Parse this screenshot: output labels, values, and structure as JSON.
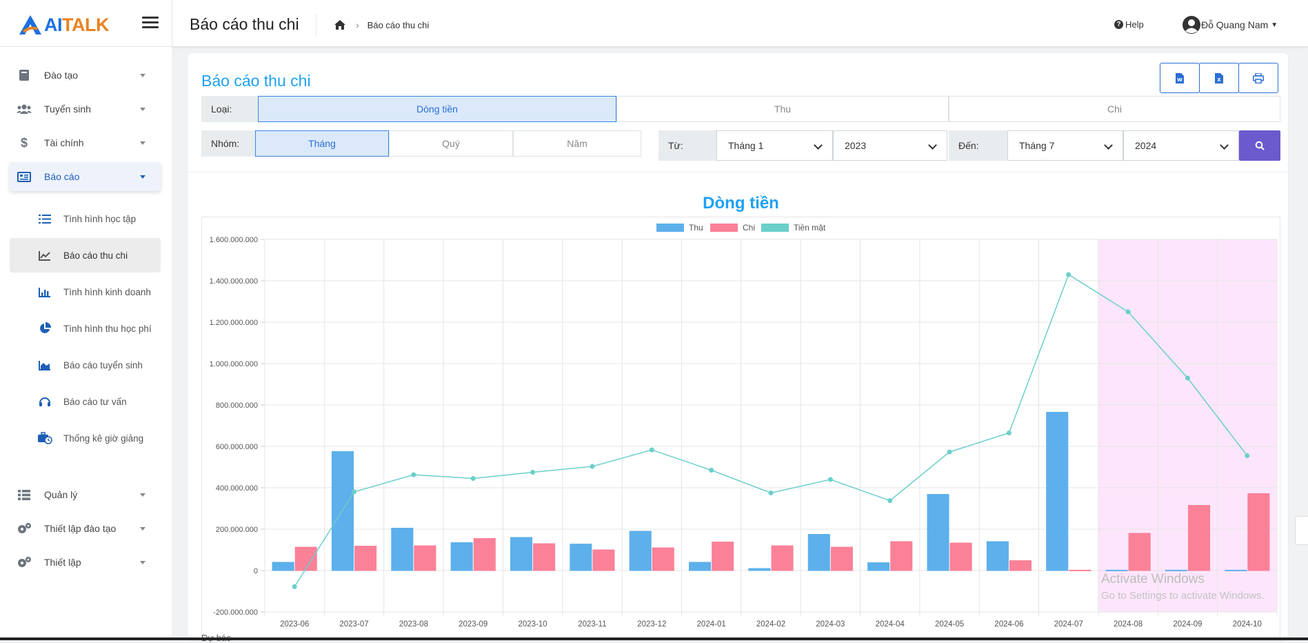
{
  "app": {
    "logo_ai": "AI",
    "logo_talk": "TALK"
  },
  "header": {
    "page_title": "Báo cáo thu chi",
    "breadcrumb_current": "Báo cáo thu chi",
    "help_label": "Help",
    "user_name": "Đỗ Quang Nam"
  },
  "sidebar": {
    "items": [
      {
        "label": "Đào tạo",
        "icon": "book-icon"
      },
      {
        "label": "Tuyển sinh",
        "icon": "users-icon"
      },
      {
        "label": "Tài chính",
        "icon": "dollar-icon"
      },
      {
        "label": "Báo cáo",
        "icon": "report-icon"
      },
      {
        "label": "Quản lý",
        "icon": "list-icon"
      },
      {
        "label": "Thiết lập đào tạo",
        "icon": "gears-icon"
      },
      {
        "label": "Thiết lập",
        "icon": "gears-icon"
      }
    ],
    "sub_items": [
      {
        "label": "Tình hình học tập",
        "icon": "tasks-icon"
      },
      {
        "label": "Báo cáo thu chi",
        "icon": "line-chart-icon"
      },
      {
        "label": "Tình hình kinh doanh",
        "icon": "bar-chart-icon"
      },
      {
        "label": "Tình hình thu học phí",
        "icon": "pie-chart-icon"
      },
      {
        "label": "Báo cáo tuyển sinh",
        "icon": "area-chart-icon"
      },
      {
        "label": "Báo cáo tư vấn",
        "icon": "headset-icon"
      },
      {
        "label": "Thống kê giờ giảng",
        "icon": "briefcase-clock-icon"
      }
    ]
  },
  "report": {
    "title": "Báo cáo thu chi",
    "type_label": "Loại:",
    "type_options": [
      "Dòng tiền",
      "Thu",
      "Chi"
    ],
    "type_selected": "Dòng tiền",
    "group_label": "Nhóm:",
    "group_options": [
      "Tháng",
      "Quý",
      "Năm"
    ],
    "group_selected": "Tháng",
    "from_label": "Từ:",
    "from_month": "Tháng 1",
    "from_year": "2023",
    "to_label": "Đến:",
    "to_month": "Tháng 7",
    "to_year": "2024",
    "footer_fragment": "Dự báo"
  },
  "chart_data": {
    "type": "bar",
    "title": "Dòng tiền",
    "categories": [
      "2023-06",
      "2023-07",
      "2023-08",
      "2023-09",
      "2023-10",
      "2023-11",
      "2023-12",
      "2024-01",
      "2024-02",
      "2024-03",
      "2024-04",
      "2024-05",
      "2024-06",
      "2024-07",
      "2024-08",
      "2024-09",
      "2024-10"
    ],
    "series": [
      {
        "name": "Thu",
        "kind": "bar",
        "color": "#5db0eb",
        "values": [
          40000000,
          575000000,
          205000000,
          135000000,
          160000000,
          128000000,
          190000000,
          40000000,
          10000000,
          175000000,
          38000000,
          368000000,
          140000000,
          765000000,
          2000000,
          2000000,
          2000000
        ]
      },
      {
        "name": "Chi",
        "kind": "bar",
        "color": "#fb8198",
        "values": [
          113000000,
          118000000,
          120000000,
          155000000,
          130000000,
          100000000,
          110000000,
          138000000,
          120000000,
          113000000,
          140000000,
          133000000,
          48000000,
          2000000,
          180000000,
          315000000,
          372000000
        ]
      },
      {
        "name": "Tiền mặt",
        "kind": "line",
        "color": "#6bcfca",
        "values": [
          -78000000,
          380000000,
          463000000,
          445000000,
          475000000,
          503000000,
          583000000,
          485000000,
          375000000,
          440000000,
          338000000,
          573000000,
          665000000,
          1430000000,
          1250000000,
          930000000,
          555000000
        ]
      }
    ],
    "forecast_categories": [
      "2024-08",
      "2024-09",
      "2024-10"
    ],
    "forecast_color": "#fde6fb",
    "ylim": [
      -200000000,
      1600000000
    ],
    "yticks": [
      1600000000,
      1400000000,
      1200000000,
      1000000000,
      800000000,
      600000000,
      400000000,
      200000000,
      0,
      -200000000
    ],
    "ytick_labels": [
      "1.600.000.000",
      "1.400.000.000",
      "1.200.000.000",
      "1.000.000.000",
      "800.000.000",
      "600.000.000",
      "400.000.000",
      "200.000.000",
      "0",
      "-200.000.000"
    ],
    "grid": true,
    "legend_position": "top-center"
  },
  "watermark": {
    "line1": "Activate Windows",
    "line2": "Go to Settings to activate Windows."
  }
}
